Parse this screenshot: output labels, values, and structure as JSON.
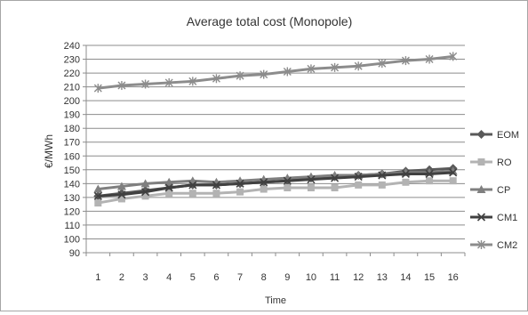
{
  "chart_data": {
    "type": "line",
    "title": "Average total cost (Monopole)",
    "xlabel": "Time",
    "ylabel": "€/MWh",
    "categories": [
      "1",
      "2",
      "3",
      "4",
      "5",
      "6",
      "7",
      "8",
      "9",
      "10",
      "11",
      "12",
      "13",
      "14",
      "15",
      "16"
    ],
    "ylim": [
      90,
      240
    ],
    "ytick_step": 10,
    "grid": true,
    "legend_position": "right",
    "series": [
      {
        "name": "EOM",
        "color": "#595959",
        "marker": "diamond",
        "values": [
          131,
          133,
          135,
          137,
          139,
          139,
          140,
          141,
          142,
          144,
          145,
          146,
          147,
          149,
          150,
          151
        ]
      },
      {
        "name": "RO",
        "color": "#b3b3b3",
        "marker": "square",
        "values": [
          126,
          129,
          131,
          133,
          133,
          133,
          134,
          136,
          137,
          137,
          137,
          139,
          139,
          141,
          142,
          142
        ]
      },
      {
        "name": "CP",
        "color": "#7f7f7f",
        "marker": "triangle",
        "values": [
          136,
          138,
          140,
          141,
          142,
          141,
          142,
          143,
          144,
          145,
          146,
          146,
          147,
          148,
          148,
          149
        ]
      },
      {
        "name": "CM1",
        "color": "#404040",
        "marker": "x",
        "values": [
          131,
          132,
          134,
          137,
          139,
          139,
          140,
          141,
          142,
          143,
          144,
          145,
          146,
          147,
          147,
          148
        ]
      },
      {
        "name": "CM2",
        "color": "#8c8c8c",
        "marker": "star",
        "values": [
          209,
          211,
          212,
          213,
          214,
          216,
          218,
          219,
          221,
          223,
          224,
          225,
          227,
          229,
          230,
          232
        ]
      }
    ]
  }
}
